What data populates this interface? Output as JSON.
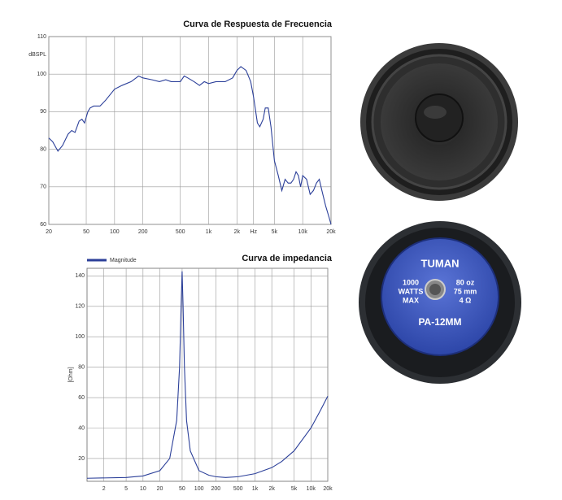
{
  "chart_data": [
    {
      "type": "line",
      "title": "Curva de Respuesta de Frecuencia",
      "ylabel": "dBSPL",
      "xscale": "log",
      "grid": true,
      "color": "#2b3f99",
      "xlim": [
        20,
        20000
      ],
      "ylim": [
        60,
        110
      ],
      "xticks": [
        20,
        50,
        100,
        200,
        500,
        {
          "value": 1000,
          "label": "1k"
        },
        {
          "value": 2000,
          "label": "2k"
        },
        {
          "value": 3000,
          "label": "Hz"
        },
        {
          "value": 5000,
          "label": "5k"
        },
        {
          "value": 10000,
          "label": "10k"
        },
        {
          "value": 20000,
          "label": "20k"
        }
      ],
      "yticks": [
        60,
        70,
        80,
        90,
        100,
        110
      ],
      "x": [
        20,
        22,
        25,
        28,
        32,
        35,
        38,
        42,
        45,
        48,
        52,
        55,
        60,
        70,
        80,
        100,
        120,
        150,
        180,
        200,
        250,
        300,
        350,
        400,
        500,
        550,
        600,
        700,
        800,
        900,
        1000,
        1200,
        1500,
        1800,
        2000,
        2200,
        2500,
        2800,
        3000,
        3300,
        3500,
        3800,
        4000,
        4300,
        4600,
        5000,
        5500,
        6000,
        6500,
        7000,
        7500,
        8000,
        8500,
        9000,
        9500,
        10000,
        11000,
        12000,
        13000,
        14000,
        15000,
        16000,
        17500,
        19000,
        20000
      ],
      "values": [
        83,
        82,
        79.5,
        81,
        84,
        85,
        84.5,
        87.5,
        88,
        87,
        90,
        91,
        91.5,
        91.5,
        93,
        96,
        97,
        98,
        99.5,
        99,
        98.5,
        98,
        98.5,
        98,
        98,
        99.5,
        99,
        98,
        97,
        98,
        97.5,
        98,
        98,
        99,
        101,
        102,
        101,
        98,
        94,
        87,
        86,
        88,
        91,
        91,
        86,
        77,
        73,
        69,
        72,
        71,
        71,
        72,
        74,
        73,
        70,
        73,
        72,
        68,
        69,
        71,
        72,
        69,
        65,
        62,
        60
      ]
    },
    {
      "type": "line",
      "title": "Curva de impedancia",
      "ylabel": "[Ohm]",
      "xscale": "log",
      "grid": true,
      "legend": "top-left",
      "xlim": [
        1,
        20000
      ],
      "ylim": [
        5,
        145
      ],
      "xticks": [
        2,
        5,
        10,
        20,
        50,
        100,
        200,
        500,
        {
          "value": 1000,
          "label": "1k"
        },
        {
          "value": 2000,
          "label": "2k"
        },
        {
          "value": 5000,
          "label": "5k"
        },
        {
          "value": 10000,
          "label": "10k"
        },
        {
          "value": 20000,
          "label": "20k"
        }
      ],
      "yticks": [
        20,
        40,
        60,
        80,
        100,
        120,
        140
      ],
      "x": [
        1,
        5,
        10,
        20,
        30,
        40,
        45,
        48,
        50,
        52,
        55,
        60,
        70,
        100,
        150,
        200,
        300,
        500,
        1000,
        2000,
        3000,
        5000,
        10000,
        15000,
        20000
      ],
      "series": [
        {
          "name": "Magnitude",
          "color": "#2b3f99",
          "values": [
            7,
            7.5,
            8.5,
            12,
            20,
            45,
            80,
            120,
            143,
            120,
            80,
            45,
            25,
            12,
            9,
            8,
            7.5,
            8,
            10,
            14,
            18,
            25,
            40,
            52,
            61
          ]
        }
      ]
    }
  ],
  "product_label": {
    "brand": "TUMAN",
    "power_value": "1000",
    "power_unit": "WATTS",
    "power_note": "MAX",
    "magnet": "80 oz",
    "coil": "75 mm",
    "impedance": "4 Ω",
    "model": "PA-12MM"
  }
}
